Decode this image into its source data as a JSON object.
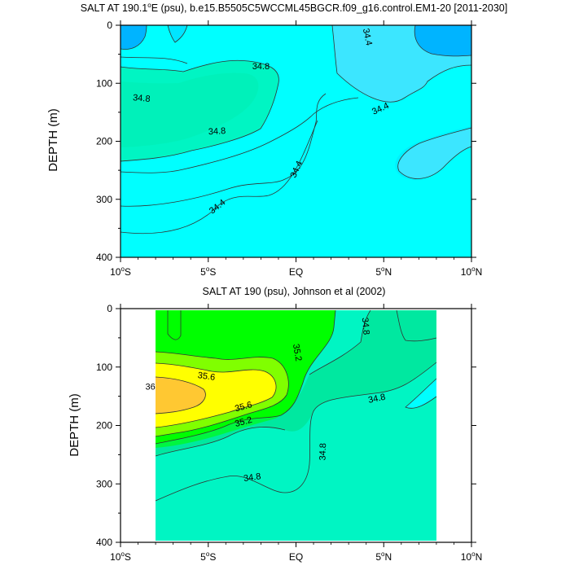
{
  "chart_data": [
    {
      "type": "contour",
      "title": "SALT AT 190.1°E (psu), b.e15.B5505C5WCCML45BGCR.f09_g16.control.EM1-20 [2011-2030]",
      "title_text": "SALT AT 190.1",
      "title_sup": "o",
      "title_rest": "E (psu), b.e15.B5505C5WCCML45BGCR.f09_g16.control.EM1-20 [2011-2030]",
      "xlabel": "",
      "ylabel": "DEPTH (m)",
      "xlim": [
        -10,
        10
      ],
      "ylim": [
        400,
        0
      ],
      "x_ticks": [
        {
          "value": -10,
          "num": "10",
          "sup": "o",
          "hemi": "S"
        },
        {
          "value": -5,
          "num": "5",
          "sup": "o",
          "hemi": "S"
        },
        {
          "value": 0,
          "num": "EQ",
          "sup": "",
          "hemi": ""
        },
        {
          "value": 5,
          "num": "5",
          "sup": "o",
          "hemi": "N"
        },
        {
          "value": 10,
          "num": "10",
          "sup": "o",
          "hemi": "N"
        }
      ],
      "y_ticks": [
        0,
        100,
        200,
        300,
        400
      ],
      "contour_labels": [
        {
          "text": "34.4",
          "lat": 4.1,
          "depth": 20,
          "angle": 78
        },
        {
          "text": "34.8",
          "lat": -2.0,
          "depth": 70,
          "angle": 0
        },
        {
          "text": "34.8",
          "lat": -8.8,
          "depth": 125,
          "angle": 5
        },
        {
          "text": "34.8",
          "lat": -4.5,
          "depth": 182,
          "angle": -3
        },
        {
          "text": "34.4",
          "lat": 4.8,
          "depth": 143,
          "angle": -25
        },
        {
          "text": "34.4",
          "lat": 0.0,
          "depth": 248,
          "angle": -65
        },
        {
          "text": "34.4",
          "lat": -4.5,
          "depth": 312,
          "angle": -38
        }
      ]
    },
    {
      "type": "contour",
      "title": "SALT AT 190 (psu), Johnson et al (2002)",
      "xlabel": "",
      "ylabel": "DEPTH (m)",
      "xlim": [
        -10,
        10
      ],
      "ylim": [
        400,
        0
      ],
      "x_ticks": [
        {
          "value": -10,
          "num": "10",
          "sup": "o",
          "hemi": "S"
        },
        {
          "value": -5,
          "num": "5",
          "sup": "o",
          "hemi": "S"
        },
        {
          "value": 0,
          "num": "EQ",
          "sup": "",
          "hemi": ""
        },
        {
          "value": 5,
          "num": "5",
          "sup": "o",
          "hemi": "N"
        },
        {
          "value": 10,
          "num": "10",
          "sup": "o",
          "hemi": "N"
        }
      ],
      "y_ticks": [
        0,
        100,
        200,
        300,
        400
      ],
      "data_extent_lat": [
        -8,
        8
      ],
      "contour_labels": [
        {
          "text": "34.8",
          "lat": 4.0,
          "depth": 30,
          "angle": 85
        },
        {
          "text": "35.2",
          "lat": 0.1,
          "depth": 75,
          "angle": 80
        },
        {
          "text": "35.6",
          "lat": -5.1,
          "depth": 115,
          "angle": 8
        },
        {
          "text": "36",
          "lat": -8.3,
          "depth": 133,
          "angle": 0
        },
        {
          "text": "35.6",
          "lat": -3.0,
          "depth": 167,
          "angle": -15
        },
        {
          "text": "35.2",
          "lat": -3.0,
          "depth": 193,
          "angle": -15
        },
        {
          "text": "34.8",
          "lat": 4.6,
          "depth": 153,
          "angle": -12
        },
        {
          "text": "34.8",
          "lat": 1.5,
          "depth": 245,
          "angle": -88
        },
        {
          "text": "34.8",
          "lat": -2.5,
          "depth": 288,
          "angle": -8
        }
      ]
    }
  ],
  "colors": {
    "fresh_deep": "#00b4ff",
    "fresh_mid": "#3ce6ff",
    "c_344": "#00ffff",
    "c_348": "#00f5c3",
    "c_352": "#00e8a0",
    "c_356": "#00ff00",
    "c_36": "#80ff00",
    "c_364": "#ffff00",
    "c_max": "#ffc832",
    "line": "#333333"
  }
}
